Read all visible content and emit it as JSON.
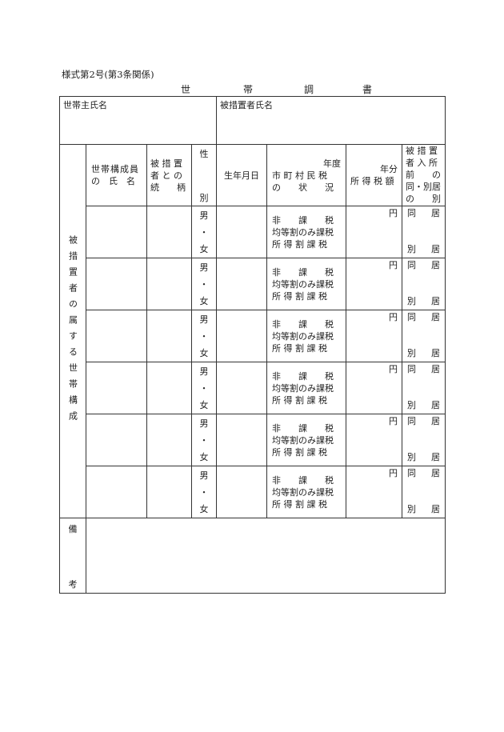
{
  "form_number": "様式第2号(第3条関係)",
  "title_chars": [
    "世",
    "帯",
    "調",
    "書"
  ],
  "head_of_household_label": "世帯主氏名",
  "head_of_household_value": "",
  "placed_person_label": "被措置者氏名",
  "placed_person_value": "",
  "side_label": "被措置者の属する世帯構成",
  "columns": {
    "member_name": [
      "世帯構成員",
      "の　氏　名"
    ],
    "relation": [
      "被 措 置",
      "者 と の",
      "続　　柄"
    ],
    "sex": [
      "性",
      "別"
    ],
    "birthdate": "生年月日",
    "municipal_tax": [
      "年度",
      "市 町 村 民 税",
      "の　　状　　況"
    ],
    "income_tax": [
      "年分",
      "所 得 税 額"
    ],
    "cohabitation": [
      "被 措 置",
      "者 入 所",
      "前　　の",
      "同・別居",
      "の　　別"
    ]
  },
  "row_options": {
    "sex": [
      "男",
      "・",
      "女"
    ],
    "tax_status": [
      "非　　課　　税",
      "均等割のみ課税",
      "所 得 割 課 税"
    ],
    "yen": "円",
    "same": [
      "同",
      "居"
    ],
    "separate": [
      "別",
      "居"
    ]
  },
  "rows": [
    {},
    {},
    {},
    {},
    {},
    {}
  ],
  "remarks_label": [
    "備",
    "考"
  ],
  "remarks_value": ""
}
